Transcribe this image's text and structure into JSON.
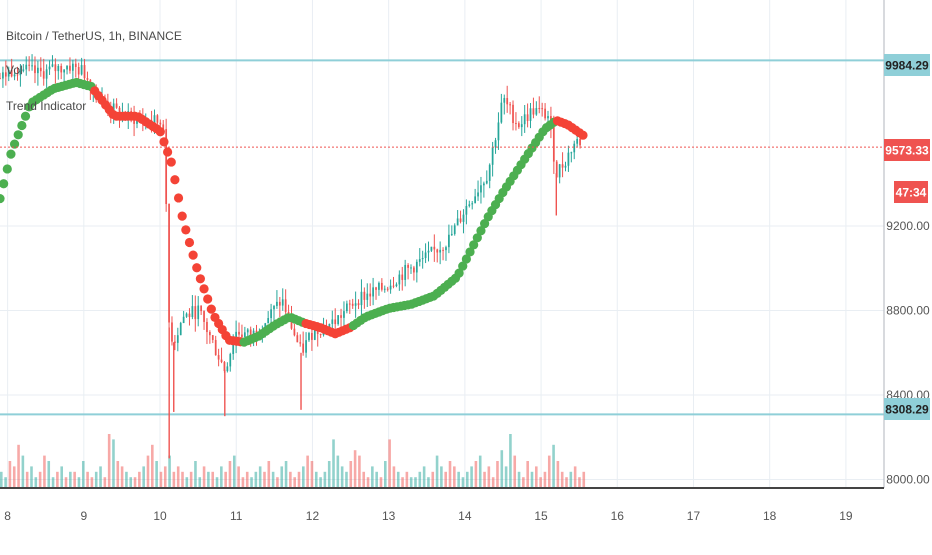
{
  "legend": {
    "symbol_line": "Bitcoin / TetherUS, 1h, BINANCE",
    "vol_line": "Vol",
    "indicator_line": "Trend Indicator"
  },
  "colors": {
    "up": "#26a69a",
    "down": "#ef5350",
    "trend_up": "#4caf50",
    "trend_down": "#f44336",
    "hline": "#8fcfd8",
    "grid": "#e9eef3",
    "axis_text": "#555555",
    "price_tag": "#ef5350",
    "hline_tag": "#8fcfd8"
  },
  "price_labels": {
    "top_line": "9984.29",
    "current": "9573.33",
    "countdown": "47:34",
    "bottom_line": "8308.29"
  },
  "chart_data": {
    "type": "line",
    "title": "Bitcoin / TetherUS, 1h, BINANCE",
    "x_ticks": [
      "8",
      "9",
      "10",
      "11",
      "12",
      "13",
      "14",
      "15",
      "16",
      "17",
      "18",
      "19"
    ],
    "x_range_days": [
      7.9,
      19.5
    ],
    "y_ticks": [
      "9200.00",
      "8800.00",
      "8400.00",
      "8000.00"
    ],
    "y_range": [
      7960,
      10270
    ],
    "horizontal_lines": [
      9984.29,
      8308.29
    ],
    "current_price": 9573.33,
    "price_series": {
      "name": "BTCUSDT",
      "x": [
        7.9,
        8.1,
        8.4,
        8.8,
        9.0,
        9.2,
        9.5,
        9.8,
        10.05,
        10.12,
        10.18,
        10.3,
        10.5,
        10.75,
        10.85,
        11.0,
        11.2,
        11.4,
        11.6,
        11.85,
        12.0,
        12.3,
        12.6,
        12.9,
        13.2,
        13.5,
        13.8,
        14.0,
        14.3,
        14.5,
        14.7,
        14.9,
        15.1,
        15.2,
        15.3,
        15.45,
        15.55
      ],
      "y": [
        9900,
        9950,
        9920,
        9960,
        9930,
        9800,
        9720,
        9700,
        9690,
        8720,
        8650,
        8770,
        8800,
        8600,
        8520,
        8700,
        8680,
        8760,
        8850,
        8600,
        8700,
        8750,
        8860,
        8900,
        8980,
        9050,
        9140,
        9280,
        9450,
        9800,
        9680,
        9750,
        9720,
        9450,
        9500,
        9600,
        9600
      ]
    },
    "trend_series": {
      "name": "Trend Indicator",
      "x": [
        7.9,
        8.05,
        8.3,
        8.6,
        8.9,
        9.1,
        9.4,
        9.7,
        10.0,
        10.15,
        10.3,
        10.5,
        10.7,
        10.9,
        11.1,
        11.3,
        11.5,
        11.7,
        11.9,
        12.1,
        12.3,
        12.5,
        12.7,
        13.0,
        13.3,
        13.6,
        13.9,
        14.1,
        14.3,
        14.5,
        14.7,
        14.9,
        15.05,
        15.2,
        15.35,
        15.55
      ],
      "y": [
        9330,
        9550,
        9780,
        9850,
        9880,
        9860,
        9720,
        9720,
        9650,
        9500,
        9230,
        8980,
        8780,
        8660,
        8650,
        8680,
        8730,
        8770,
        8740,
        8720,
        8690,
        8720,
        8770,
        8810,
        8830,
        8870,
        8960,
        9100,
        9240,
        9360,
        9470,
        9580,
        9660,
        9700,
        9680,
        9630
      ],
      "direction": [
        "up",
        "up",
        "up",
        "up",
        "up",
        "down",
        "down",
        "down",
        "down",
        "down",
        "down",
        "down",
        "down",
        "down",
        "up",
        "up",
        "up",
        "up",
        "down",
        "down",
        "down",
        "up",
        "up",
        "up",
        "up",
        "up",
        "up",
        "up",
        "up",
        "up",
        "up",
        "up",
        "up",
        "down",
        "down",
        "down"
      ]
    },
    "volume": {
      "name": "Vol",
      "x_range_days": [
        7.9,
        15.6
      ],
      "relative_values": [
        0.3,
        0.2,
        0.5,
        0.4,
        0.8,
        0.6,
        0.3,
        0.4,
        0.2,
        0.3,
        0.6,
        0.5,
        0.2,
        0.3,
        0.4,
        0.2,
        0.3,
        0.3,
        0.2,
        0.5,
        0.3,
        0.2,
        0.3,
        0.4,
        0.2,
        1.0,
        0.9,
        0.5,
        0.4,
        0.3,
        0.2,
        0.2,
        0.3,
        0.4,
        0.6,
        0.8,
        0.5,
        0.3,
        0.4,
        0.6,
        0.3,
        0.4,
        0.3,
        0.2,
        0.3,
        0.5,
        0.2,
        0.4,
        0.3,
        0.3,
        0.2,
        0.4,
        0.3,
        0.5,
        0.6,
        0.4,
        0.2,
        0.3,
        0.2,
        0.3,
        0.4,
        0.3,
        0.5,
        0.3,
        0.2,
        0.4,
        0.5,
        0.3,
        0.2,
        0.3,
        0.4,
        0.6,
        0.5,
        0.3,
        0.2,
        0.3,
        0.5,
        0.9,
        0.6,
        0.4,
        0.3,
        0.5,
        0.7,
        0.6,
        0.3,
        0.2,
        0.4,
        0.3,
        0.2,
        0.5,
        0.9,
        0.4,
        0.3,
        0.2,
        0.3,
        0.2,
        0.2,
        0.3,
        0.4,
        0.2,
        0.3,
        0.6,
        0.4,
        0.3,
        0.5,
        0.4,
        0.3,
        0.2,
        0.3,
        0.4,
        0.5,
        0.6,
        0.3,
        0.4,
        0.2,
        0.5,
        0.7,
        0.4,
        1.0,
        0.6,
        0.3,
        0.2,
        0.5,
        0.3,
        0.4,
        0.2,
        0.3,
        0.6,
        0.8,
        0.5,
        0.3,
        0.2,
        0.3,
        0.4,
        0.2,
        0.3
      ]
    }
  }
}
